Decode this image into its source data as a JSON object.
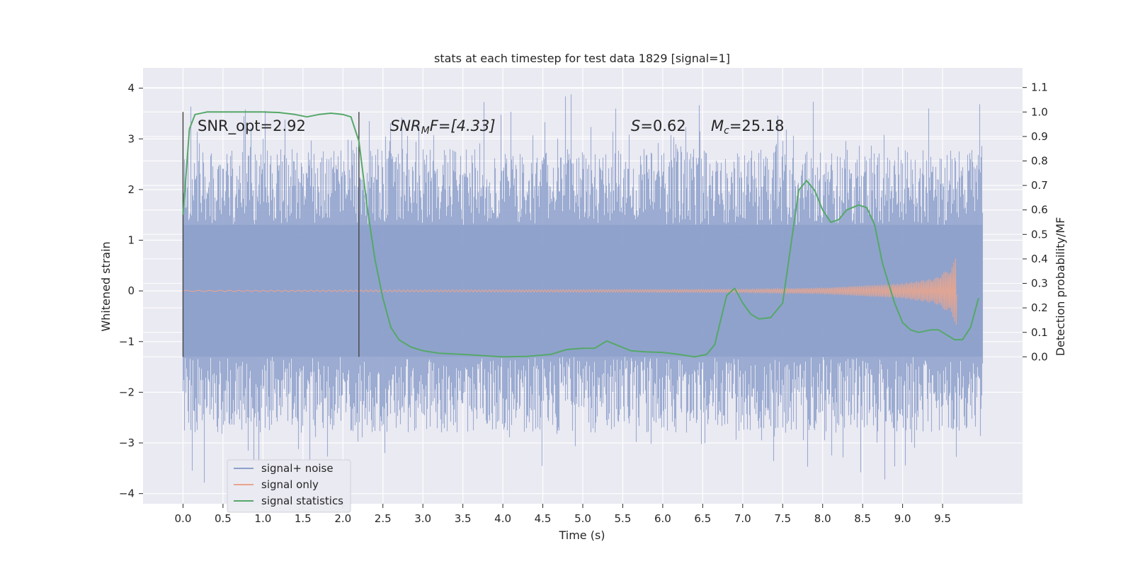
{
  "chart_data": {
    "type": "line",
    "title": "stats at each timestep for test data 1829 [signal=1]",
    "xlabel": "Time (s)",
    "ylabel": "Whitened strain",
    "ylabel_right": "Detection probability/MF",
    "xlim": [
      -0.5,
      10.5
    ],
    "ylim": [
      -4.2,
      4.4
    ],
    "ylim_right": [
      -0.6,
      1.18
    ],
    "x_ticks": [
      "0.0",
      "0.5",
      "1.0",
      "1.5",
      "2.0",
      "2.5",
      "3.0",
      "3.5",
      "4.0",
      "4.5",
      "5.0",
      "5.5",
      "6.0",
      "6.5",
      "7.0",
      "7.5",
      "8.0",
      "8.5",
      "9.0",
      "9.5"
    ],
    "y_ticks": [
      "4",
      "3",
      "2",
      "1",
      "0",
      "−1",
      "−2",
      "−3",
      "−4"
    ],
    "y_ticks_right": [
      "1.1",
      "1.0",
      "0.9",
      "0.8",
      "0.7",
      "0.6",
      "0.5",
      "0.4",
      "0.3",
      "0.2",
      "0.1",
      "0.0"
    ],
    "grid": true,
    "legend_position": "lower-left",
    "annotations": {
      "snr_opt": "SNR_opt=2.92",
      "snr_mf_main": "SNR",
      "snr_mf_sub": "M",
      "snr_mf_rest": "F=[4.33]",
      "s_var": "S",
      "s_rest": "=0.62",
      "mc_var": "M",
      "mc_sub": "c",
      "mc_rest": "=25.18"
    },
    "vertical_markers": [
      0.0,
      2.2
    ],
    "series": [
      {
        "name": "signal+ noise",
        "color": "#8da0cb",
        "x_range": [
          0.0,
          10.0
        ],
        "band": {
          "inner_min": -1.3,
          "inner_max": 1.3,
          "extreme_min": -3.8,
          "extreme_max": 4.05
        }
      },
      {
        "name": "signal only",
        "color": "#e8a58f",
        "x_range": [
          0.0,
          9.68
        ],
        "amplitude_envelope": [
          [
            0.0,
            0.01
          ],
          [
            7.0,
            0.03
          ],
          [
            8.0,
            0.06
          ],
          [
            9.0,
            0.15
          ],
          [
            9.4,
            0.25
          ],
          [
            9.6,
            0.45
          ],
          [
            9.68,
            0.7
          ]
        ]
      },
      {
        "name": "signal statistics",
        "color": "#55a868",
        "axis": "right",
        "x": [
          0.0,
          0.08,
          0.15,
          0.3,
          0.5,
          0.8,
          1.0,
          1.2,
          1.4,
          1.55,
          1.7,
          1.85,
          2.0,
          2.1,
          2.2,
          2.3,
          2.4,
          2.5,
          2.6,
          2.7,
          2.85,
          3.0,
          3.2,
          3.5,
          4.0,
          4.3,
          4.6,
          4.8,
          5.0,
          5.15,
          5.3,
          5.45,
          5.6,
          5.8,
          6.0,
          6.2,
          6.4,
          6.55,
          6.65,
          6.8,
          6.9,
          7.0,
          7.1,
          7.2,
          7.35,
          7.5,
          7.6,
          7.7,
          7.8,
          7.9,
          8.0,
          8.1,
          8.2,
          8.3,
          8.45,
          8.55,
          8.65,
          8.75,
          8.9,
          9.0,
          9.1,
          9.2,
          9.35,
          9.45,
          9.55,
          9.65,
          9.75,
          9.85,
          9.95
        ],
        "y": [
          0.58,
          0.93,
          0.99,
          1.0,
          1.0,
          1.0,
          1.0,
          0.998,
          0.99,
          0.98,
          0.99,
          0.995,
          0.99,
          0.98,
          0.88,
          0.62,
          0.4,
          0.24,
          0.12,
          0.07,
          0.04,
          0.025,
          0.015,
          0.01,
          0.0,
          0.002,
          0.01,
          0.03,
          0.035,
          0.035,
          0.065,
          0.045,
          0.025,
          0.02,
          0.018,
          0.01,
          0.0,
          0.01,
          0.05,
          0.25,
          0.28,
          0.22,
          0.175,
          0.155,
          0.16,
          0.22,
          0.45,
          0.68,
          0.72,
          0.68,
          0.6,
          0.55,
          0.56,
          0.6,
          0.62,
          0.61,
          0.54,
          0.38,
          0.22,
          0.14,
          0.11,
          0.1,
          0.11,
          0.11,
          0.09,
          0.07,
          0.07,
          0.12,
          0.24
        ]
      }
    ]
  }
}
